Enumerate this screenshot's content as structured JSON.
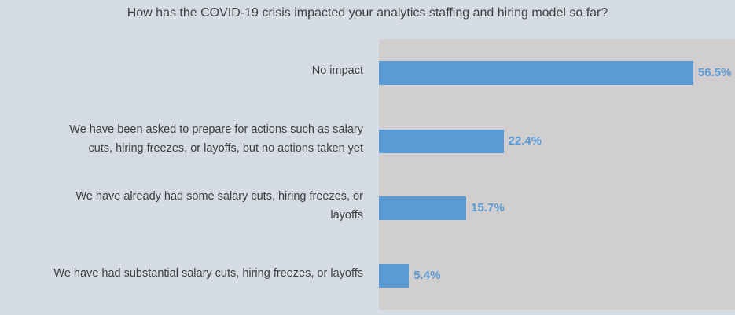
{
  "chart_data": {
    "type": "bar",
    "orientation": "horizontal",
    "title": "How has the COVID-19 crisis impacted your analytics staffing and hiring model so far?",
    "categories": [
      "No impact",
      "We have been asked to prepare for actions such as salary cuts, hiring freezes, or layoffs, but no actions taken yet",
      "We have already had some salary cuts, hiring freezes, or layoffs",
      "We have had substantial salary cuts, hiring freezes, or layoffs"
    ],
    "category_lines": [
      [
        "No impact"
      ],
      [
        "We have been asked to prepare for actions such as salary",
        "cuts, hiring freezes, or layoffs, but no actions taken yet"
      ],
      [
        "We have already had some salary cuts, hiring freezes, or",
        "layoffs"
      ],
      [
        "We have had substantial salary cuts, hiring freezes, or layoffs"
      ]
    ],
    "values": [
      56.5,
      22.4,
      15.7,
      5.4
    ],
    "value_labels": [
      "56.5%",
      "22.4%",
      "15.7%",
      "5.4%"
    ],
    "xlim": [
      0,
      64
    ],
    "grid": false,
    "legend": "none",
    "colors": {
      "bar": "#5b9bd5",
      "plot_bg": "#d0cece",
      "page_bg": "#d6dce4"
    }
  }
}
